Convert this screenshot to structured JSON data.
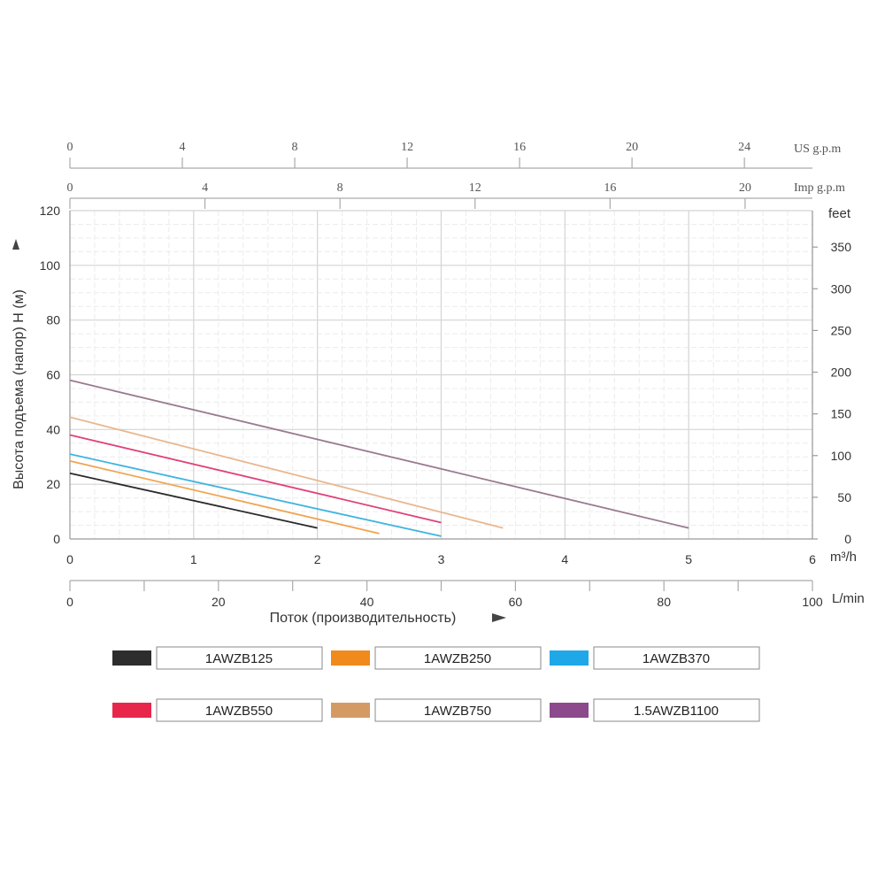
{
  "chart_data": {
    "type": "line",
    "ylabel": "Высота подъема (напор) H (м)",
    "xlabel": "Поток (производительность)",
    "y_axis": {
      "ticks": [
        0,
        20,
        40,
        60,
        80,
        100,
        120
      ],
      "ylim": [
        0,
        120
      ]
    },
    "y2_axis": {
      "unit": "feet",
      "ticks": [
        0,
        50,
        100,
        150,
        200,
        250,
        300,
        350
      ]
    },
    "x_axis": {
      "unit": "m³/h",
      "ticks": [
        0,
        1,
        2,
        3,
        4,
        5,
        6
      ],
      "xlim": [
        0,
        6
      ]
    },
    "x_lmin_axis": {
      "unit": "L/min",
      "ticks": [
        0,
        20,
        40,
        60,
        80,
        100
      ]
    },
    "x_usgpm_axis": {
      "unit": "US g.p.m",
      "ticks": [
        0,
        4,
        8,
        12,
        16,
        20,
        24
      ]
    },
    "x_impgpm_axis": {
      "unit": "Imp g.p.m",
      "ticks": [
        0,
        4,
        8,
        12,
        16,
        20
      ]
    },
    "grid": true,
    "legend_position": "bottom",
    "series": [
      {
        "name": "1AWZB125",
        "color": "#2a2a2a",
        "legend_color": "#2d2d2d",
        "x": [
          0,
          2.0
        ],
        "y": [
          24,
          4
        ]
      },
      {
        "name": "1AWZB250",
        "color": "#f0a450",
        "legend_color": "#f08a1c",
        "x": [
          0,
          2.5
        ],
        "y": [
          28.5,
          2
        ]
      },
      {
        "name": "1AWZB370",
        "color": "#3fb4e0",
        "legend_color": "#1ea8e8",
        "x": [
          0,
          3.0
        ],
        "y": [
          31,
          1
        ]
      },
      {
        "name": "1AWZB550",
        "color": "#e0407a",
        "legend_color": "#e8264c",
        "x": [
          0,
          3.0
        ],
        "y": [
          38,
          6
        ]
      },
      {
        "name": "1AWZB750",
        "color": "#e8b890",
        "legend_color": "#d49a64",
        "x": [
          0,
          3.5
        ],
        "y": [
          44.5,
          4
        ]
      },
      {
        "name": "1.5AWZB1100",
        "color": "#9a7a8e",
        "legend_color": "#8c4a8c",
        "x": [
          0,
          5.0
        ],
        "y": [
          58,
          4
        ]
      }
    ]
  }
}
